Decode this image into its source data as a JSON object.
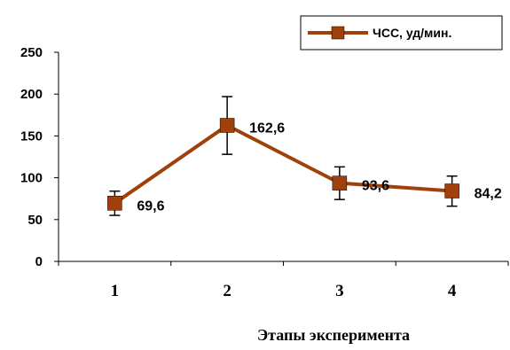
{
  "chart_data": {
    "type": "line",
    "title": "",
    "xlabel": "Этапы эксперимента",
    "ylabel": "",
    "categories": [
      "1",
      "2",
      "3",
      "4"
    ],
    "ylim": [
      0,
      250
    ],
    "yticks": [
      "0",
      "50",
      "100",
      "150",
      "200",
      "250"
    ],
    "series": [
      {
        "name": "ЧСС, уд/мин.",
        "values": [
          69.6,
          162.6,
          93.6,
          84.2
        ],
        "value_labels": [
          "69,6",
          "162,6",
          "93,6",
          "84,2"
        ],
        "error_low": [
          55,
          128,
          74,
          66
        ],
        "error_high": [
          84,
          197,
          113,
          102
        ],
        "color": "#a0400a"
      }
    ],
    "legend_position": "top-right",
    "grid": false
  }
}
